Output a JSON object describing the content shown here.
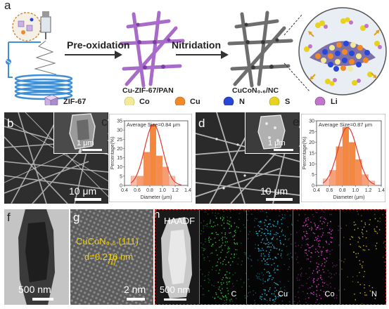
{
  "panel_a": {
    "label": "a",
    "step1": "Pre-oxidation",
    "step2": "Nitridation",
    "product1": "Cu-ZIF-67/PAN",
    "product2": "CuCoN₀.₆/NC",
    "legend": [
      {
        "name": "ZIF-67",
        "color": "#c9b2e0",
        "shape": "cube"
      },
      {
        "name": "Co",
        "color": "#f2ea98",
        "shape": "sphere"
      },
      {
        "name": "Cu",
        "color": "#f08a28",
        "shape": "sphere"
      },
      {
        "name": "N",
        "color": "#2846d8",
        "shape": "sphere"
      },
      {
        "name": "S",
        "color": "#e8d21e",
        "shape": "sphere"
      },
      {
        "name": "Li",
        "color": "#c075c8",
        "shape": "sphere"
      }
    ],
    "colors": {
      "fiber_purple": "#a86bc9",
      "fiber_gray": "#6e6e6e",
      "coil_blue": "#3d8fd6"
    }
  },
  "panel_b": {
    "label": "b",
    "inset_scale": "1 μm",
    "scale": "10 μm"
  },
  "panel_c": {
    "label": "c",
    "annotation": "Average Size=0.84 μm"
  },
  "panel_d": {
    "label": "d",
    "inset_scale": "1 μm",
    "scale": "10 μm"
  },
  "panel_e": {
    "label": "e",
    "annotation": "Average Size=0.87 μm"
  },
  "panel_f": {
    "label": "f",
    "scale": "500 nm"
  },
  "panel_g": {
    "label": "g",
    "phase": "CuCoN₀.₆ (111)",
    "dspacing": "d=0.216 nm",
    "scale": "2 nm"
  },
  "panel_h": {
    "label": "h",
    "haadf": "HAADF",
    "scale": "500 nm",
    "maps": [
      {
        "element": "C",
        "color": "#2fc23a"
      },
      {
        "element": "Cu",
        "color": "#1fb3d8"
      },
      {
        "element": "Co",
        "color": "#e23ad2"
      },
      {
        "element": "N",
        "color": "#c8b82a"
      }
    ]
  },
  "chart_data": [
    {
      "type": "bar",
      "panel": "c",
      "title": "",
      "xlabel": "Diameter (μm)",
      "ylabel": "Percentage(%)",
      "annotation": "Average Size=0.84 μm",
      "x": [
        0.55,
        0.65,
        0.75,
        0.85,
        0.95,
        1.05,
        1.15
      ],
      "values": [
        5,
        5,
        18,
        33,
        16,
        10,
        5
      ],
      "fit": "gaussian",
      "xlim": [
        0.4,
        1.4
      ],
      "ylim": [
        0,
        35
      ],
      "xticks": [
        "0.4",
        "0.6",
        "0.8",
        "1.0",
        "1.2",
        "1.4"
      ],
      "yticks": [
        "0",
        "5",
        "10",
        "15",
        "20",
        "25",
        "30",
        "35"
      ]
    },
    {
      "type": "bar",
      "panel": "e",
      "title": "",
      "xlabel": "Diameter (μm)",
      "ylabel": "Percentage(%)",
      "annotation": "Average Size=0.87 μm",
      "x": [
        0.55,
        0.65,
        0.75,
        0.85,
        0.95,
        1.05,
        1.15,
        1.25
      ],
      "values": [
        3,
        7,
        18,
        27,
        20,
        12,
        5,
        2
      ],
      "fit": "gaussian",
      "xlim": [
        0.4,
        1.4
      ],
      "ylim": [
        0,
        30
      ],
      "xticks": [
        "0.4",
        "0.6",
        "0.8",
        "1.0",
        "1.2",
        "1.4"
      ],
      "yticks": [
        "0",
        "5",
        "10",
        "15",
        "20",
        "25",
        "30"
      ]
    }
  ]
}
